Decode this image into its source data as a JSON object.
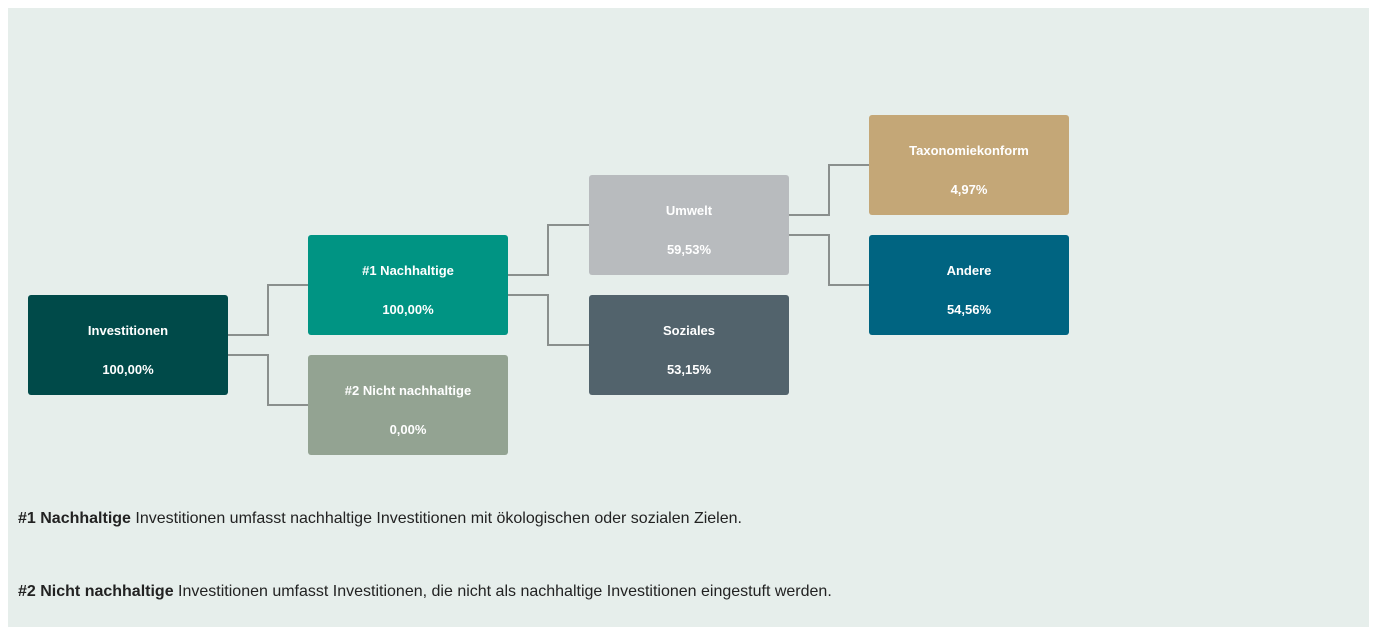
{
  "nodes": [
    {
      "label": "Investitionen",
      "value": "100,00%"
    },
    {
      "label": "#1 Nachhaltige",
      "value": "100,00%"
    },
    {
      "label": "#2 Nicht nachhaltige",
      "value": "0,00%"
    },
    {
      "label": "Umwelt",
      "value": "59,53%"
    },
    {
      "label": "Soziales",
      "value": "53,15%"
    },
    {
      "label": "Taxonomiekonform",
      "value": "4,97%"
    },
    {
      "label": "Andere",
      "value": "54,56%"
    }
  ],
  "notes": [
    {
      "term": "#1 Nachhaltige",
      "text": "Investitionen umfasst nachhaltige Investitionen mit ökologischen oder sozialen Zielen."
    },
    {
      "term": "#2 Nicht nachhaltige",
      "text": "Investitionen umfasst Investitionen, die nicht als nachhaltige Investitionen eingestuft werden."
    }
  ]
}
